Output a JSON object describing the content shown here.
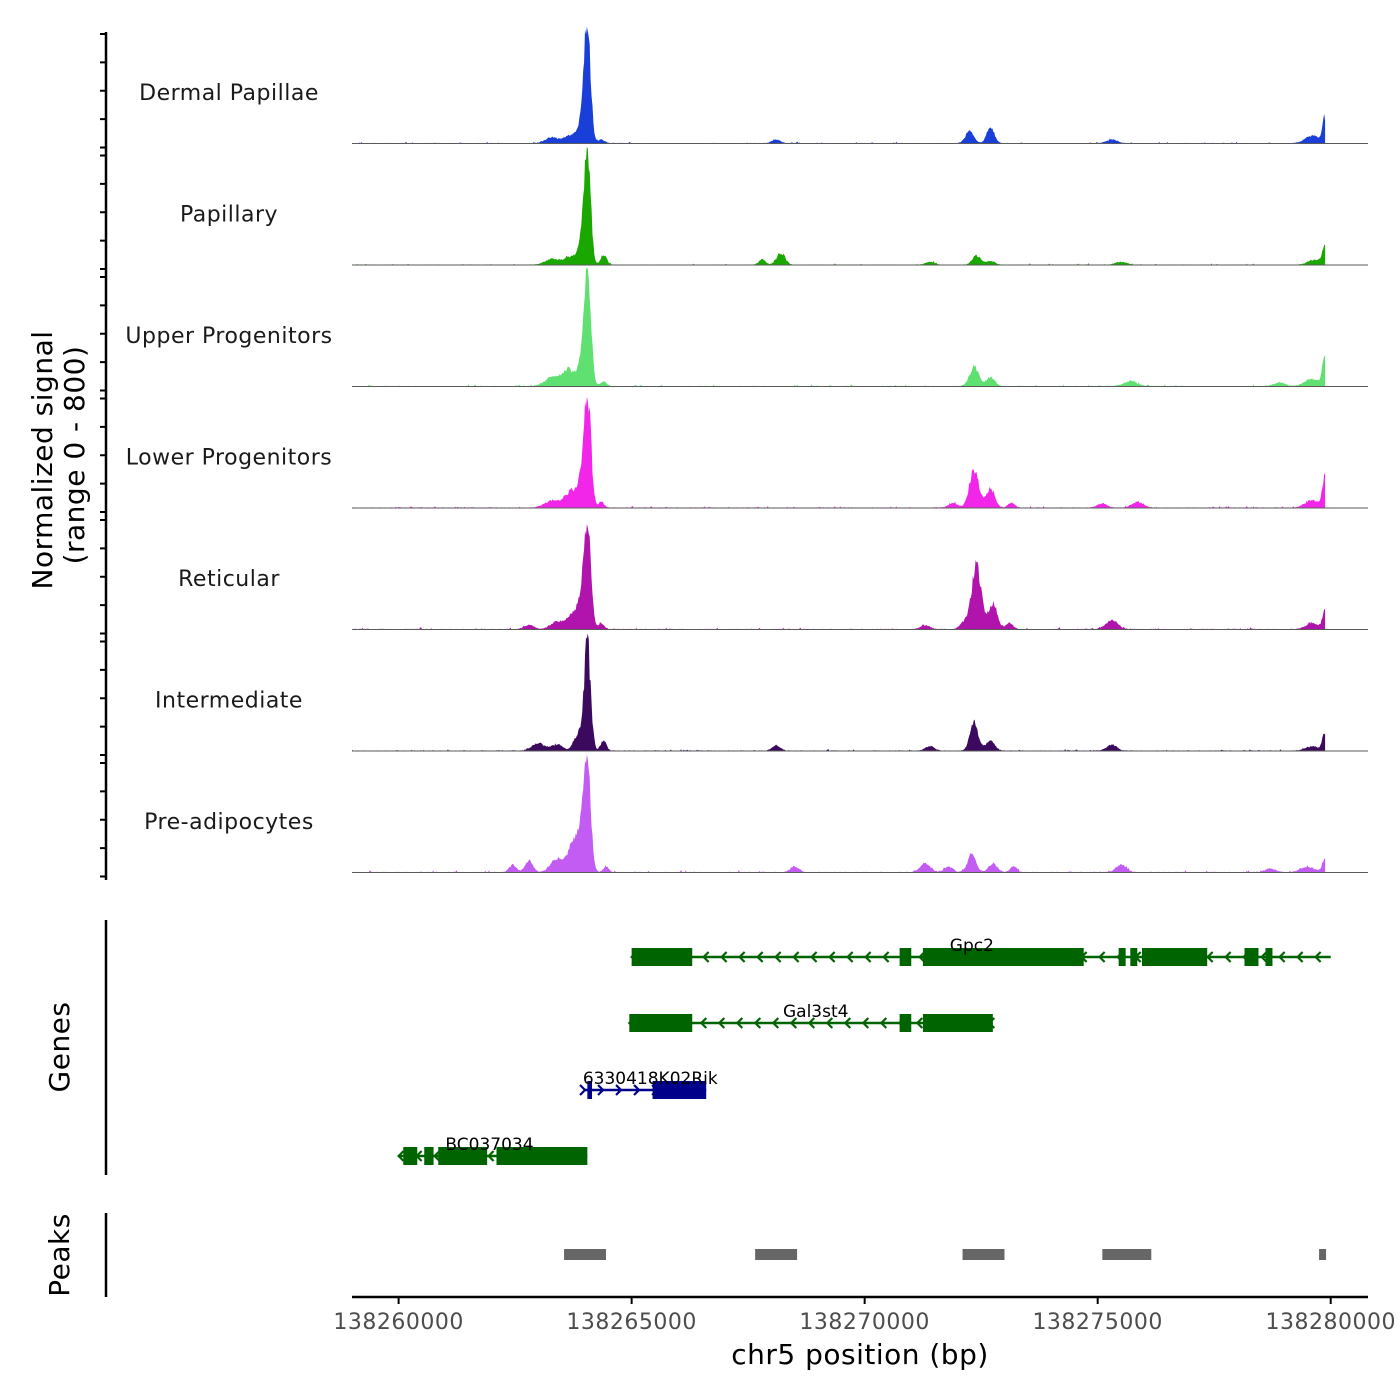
{
  "chart_data": {
    "type": "area",
    "title": "",
    "chromosome": "chr5",
    "xlabel": "chr5 position (bp)",
    "ylabel_line1": "Normalized signal",
    "ylabel_line2": "(range 0 - 800)",
    "ylim": [
      0,
      800
    ],
    "xlim": [
      138259000,
      138280800
    ],
    "xticks": [
      138260000,
      138265000,
      138270000,
      138275000,
      138280000
    ],
    "xtick_labels": [
      "138260000",
      "138265000",
      "138270000",
      "138275000",
      "138280000"
    ],
    "series": [
      {
        "name": "Dermal Papillae",
        "color": "#1a3fd9",
        "baseline": 4,
        "noise": 5,
        "peaks": [
          [
            138263300,
            40,
            150
          ],
          [
            138263700,
            55,
            130
          ],
          [
            138263950,
            150,
            90
          ],
          [
            138264050,
            720,
            70
          ],
          [
            138264350,
            25,
            70
          ],
          [
            138268100,
            25,
            90
          ],
          [
            138272250,
            80,
            90
          ],
          [
            138272700,
            110,
            80
          ],
          [
            138275300,
            25,
            120
          ],
          [
            138279600,
            50,
            150
          ],
          [
            138279870,
            170,
            50
          ]
        ]
      },
      {
        "name": "Papillary",
        "color": "#1aa800",
        "baseline": 4,
        "noise": 5,
        "peaks": [
          [
            138263300,
            40,
            160
          ],
          [
            138263700,
            55,
            130
          ],
          [
            138263950,
            150,
            90
          ],
          [
            138264050,
            720,
            70
          ],
          [
            138264400,
            70,
            60
          ],
          [
            138267800,
            40,
            70
          ],
          [
            138268200,
            80,
            90
          ],
          [
            138271400,
            20,
            100
          ],
          [
            138272400,
            60,
            90
          ],
          [
            138272700,
            25,
            100
          ],
          [
            138275500,
            20,
            120
          ],
          [
            138279650,
            35,
            140
          ],
          [
            138279870,
            120,
            50
          ]
        ]
      },
      {
        "name": "Upper Progenitors",
        "color": "#5fe070",
        "baseline": 5,
        "noise": 6,
        "peaks": [
          [
            138263300,
            60,
            160
          ],
          [
            138263650,
            110,
            130
          ],
          [
            138263950,
            190,
            90
          ],
          [
            138264060,
            700,
            70
          ],
          [
            138264400,
            30,
            70
          ],
          [
            138272350,
            130,
            100
          ],
          [
            138272700,
            60,
            90
          ],
          [
            138275700,
            30,
            150
          ],
          [
            138278900,
            25,
            120
          ],
          [
            138279600,
            50,
            150
          ],
          [
            138279870,
            200,
            50
          ]
        ]
      },
      {
        "name": "Lower Progenitors",
        "color": "#f226e8",
        "baseline": 5,
        "noise": 6,
        "peaks": [
          [
            138263300,
            50,
            160
          ],
          [
            138263700,
            110,
            130
          ],
          [
            138263950,
            200,
            90
          ],
          [
            138264060,
            700,
            70
          ],
          [
            138264350,
            40,
            60
          ],
          [
            138271900,
            30,
            100
          ],
          [
            138272350,
            270,
            100
          ],
          [
            138272700,
            130,
            90
          ],
          [
            138273150,
            35,
            70
          ],
          [
            138275100,
            30,
            100
          ],
          [
            138275850,
            40,
            120
          ],
          [
            138279600,
            50,
            150
          ],
          [
            138279870,
            210,
            50
          ]
        ]
      },
      {
        "name": "Reticular",
        "color": "#b014ad",
        "baseline": 5,
        "noise": 6,
        "peaks": [
          [
            138262800,
            30,
            100
          ],
          [
            138263400,
            50,
            140
          ],
          [
            138263750,
            100,
            130
          ],
          [
            138263950,
            180,
            90
          ],
          [
            138264060,
            680,
            70
          ],
          [
            138264350,
            40,
            60
          ],
          [
            138271300,
            25,
            100
          ],
          [
            138272150,
            50,
            100
          ],
          [
            138272400,
            440,
            100
          ],
          [
            138272750,
            180,
            90
          ],
          [
            138273100,
            40,
            80
          ],
          [
            138275300,
            60,
            130
          ],
          [
            138279600,
            40,
            140
          ],
          [
            138279870,
            120,
            50
          ]
        ]
      },
      {
        "name": "Intermediate",
        "color": "#3b0a5e",
        "baseline": 5,
        "noise": 5,
        "peaks": [
          [
            138263000,
            50,
            140
          ],
          [
            138263400,
            40,
            120
          ],
          [
            138263850,
            110,
            90
          ],
          [
            138264050,
            720,
            70
          ],
          [
            138264400,
            70,
            60
          ],
          [
            138268100,
            35,
            90
          ],
          [
            138271400,
            30,
            100
          ],
          [
            138272350,
            190,
            90
          ],
          [
            138272700,
            70,
            90
          ],
          [
            138275300,
            40,
            110
          ],
          [
            138279600,
            30,
            140
          ],
          [
            138279870,
            110,
            50
          ]
        ]
      },
      {
        "name": "Pre-adipocytes",
        "color": "#c25cf2",
        "baseline": 5,
        "noise": 7,
        "peaks": [
          [
            138262450,
            50,
            80
          ],
          [
            138262800,
            80,
            80
          ],
          [
            138263400,
            90,
            140
          ],
          [
            138263750,
            180,
            120
          ],
          [
            138263950,
            320,
            90
          ],
          [
            138264060,
            600,
            70
          ],
          [
            138264450,
            40,
            60
          ],
          [
            138268500,
            40,
            90
          ],
          [
            138271300,
            60,
            110
          ],
          [
            138271800,
            40,
            90
          ],
          [
            138272300,
            120,
            90
          ],
          [
            138272750,
            60,
            90
          ],
          [
            138273200,
            40,
            70
          ],
          [
            138275500,
            50,
            110
          ],
          [
            138278700,
            25,
            110
          ],
          [
            138279500,
            35,
            150
          ],
          [
            138279870,
            90,
            50
          ]
        ]
      }
    ],
    "genes": [
      {
        "name": "Gpc2",
        "strand": "-",
        "color": "#006400",
        "row": 0,
        "start": 138265000,
        "end": 138280000,
        "exons": [
          [
            138265000,
            138266300
          ],
          [
            138270750,
            138271000
          ],
          [
            138271250,
            138274700
          ],
          [
            138275450,
            138275600
          ],
          [
            138275700,
            138275850
          ],
          [
            138275950,
            138277350
          ],
          [
            138278150,
            138278450
          ],
          [
            138278600,
            138278750
          ]
        ]
      },
      {
        "name": "Gal3st4",
        "strand": "-",
        "color": "#006400",
        "row": 1,
        "start": 138264950,
        "end": 138272750,
        "exons": [
          [
            138264950,
            138266300
          ],
          [
            138270750,
            138271000
          ],
          [
            138271250,
            138272750
          ]
        ]
      },
      {
        "name": "6330418K02Rik",
        "strand": "+",
        "color": "#00008b",
        "row": 2,
        "start": 138264000,
        "end": 138266600,
        "exons": [
          [
            138264050,
            138264150
          ],
          [
            138265450,
            138266600
          ]
        ]
      },
      {
        "name": "BC037034",
        "strand": "-",
        "color": "#006400",
        "row": 3,
        "start": 138260000,
        "end": 138264050,
        "exons": [
          [
            138260100,
            138260400
          ],
          [
            138260550,
            138260750
          ],
          [
            138260850,
            138261900
          ],
          [
            138262100,
            138264050
          ]
        ]
      }
    ],
    "gene_label_positions": [
      138272300,
      138268950,
      138265400,
      138261950
    ],
    "peaks": [
      [
        138263550,
        138264450
      ],
      [
        138267650,
        138268550
      ],
      [
        138272100,
        138273000
      ],
      [
        138275100,
        138276150
      ],
      [
        138279750,
        138279900
      ]
    ],
    "track_title_genes": "Genes",
    "track_title_peaks": "Peaks"
  }
}
